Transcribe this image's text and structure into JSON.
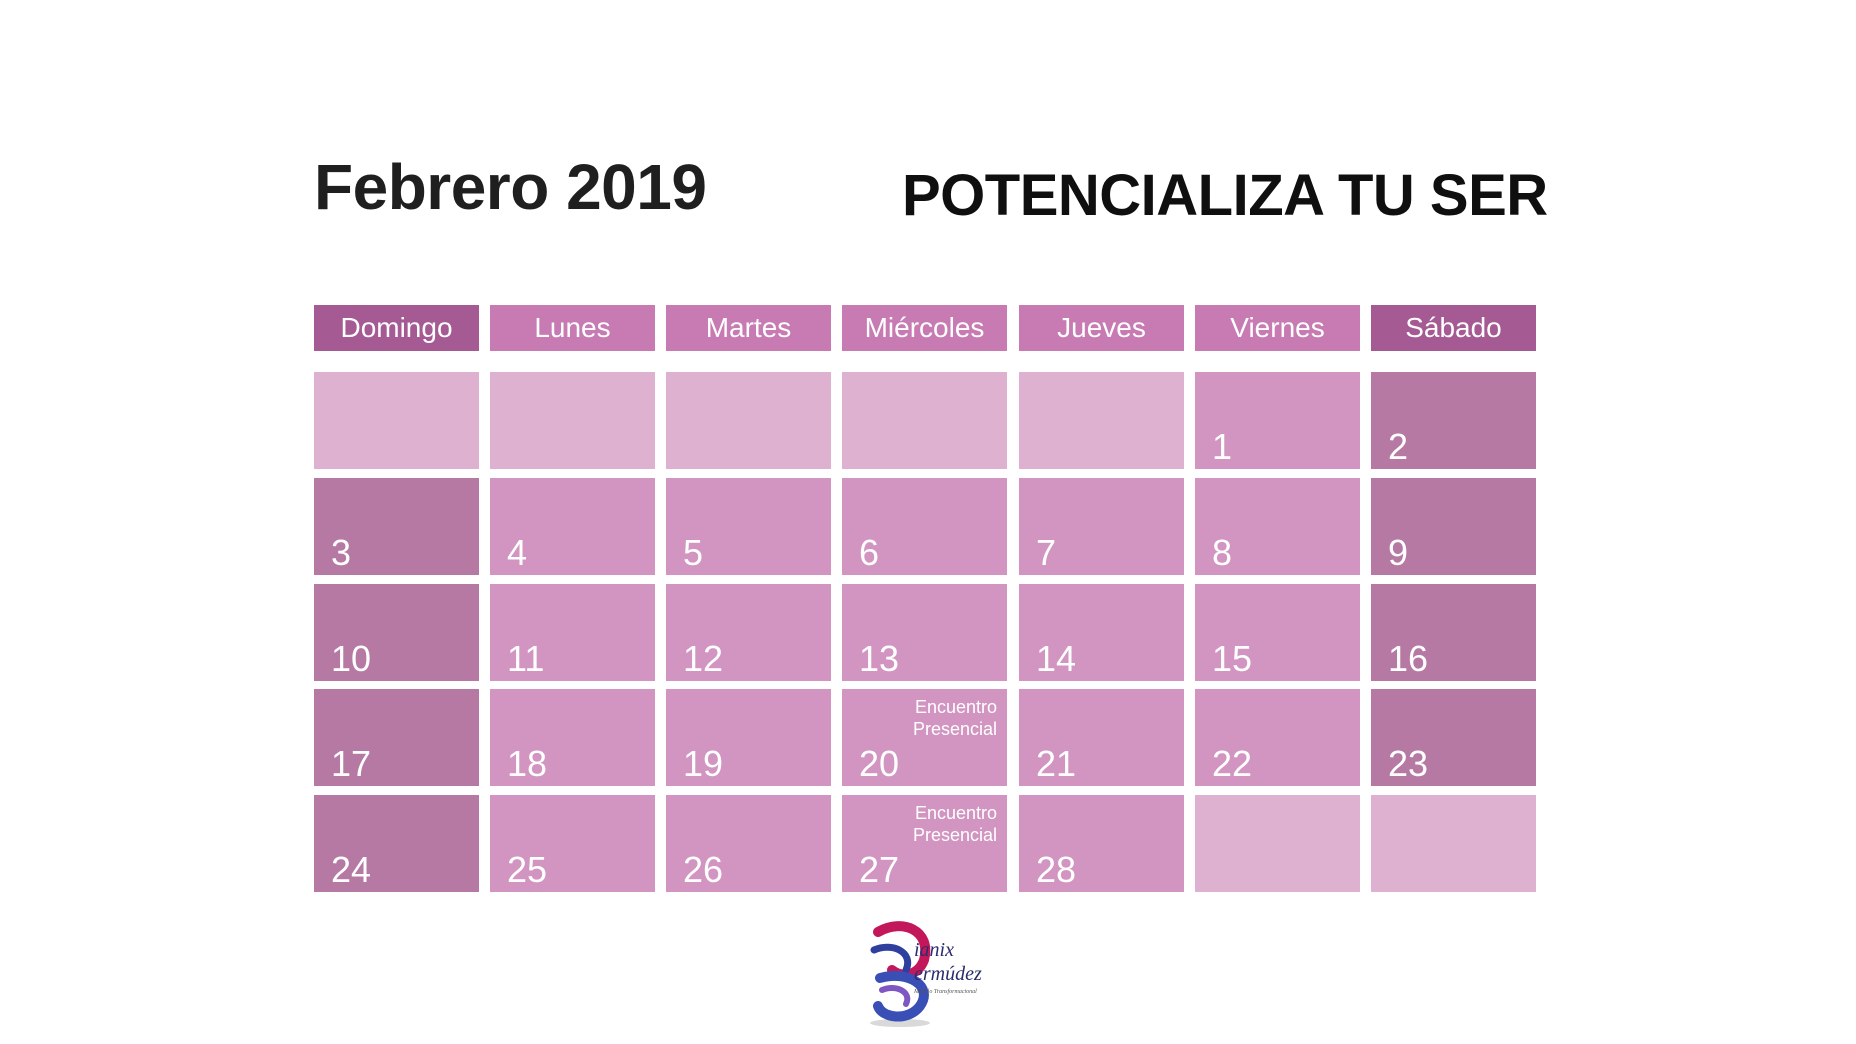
{
  "header": {
    "month_title": "Febrero 2019",
    "slogan": "POTENCIALIZA TU SER"
  },
  "weekdays": [
    "Domingo",
    "Lunes",
    "Martes",
    "Miércoles",
    "Jueves",
    "Viernes",
    "Sábado"
  ],
  "weeks": [
    [
      {
        "day": "",
        "type": "empty"
      },
      {
        "day": "",
        "type": "empty"
      },
      {
        "day": "",
        "type": "empty"
      },
      {
        "day": "",
        "type": "empty"
      },
      {
        "day": "",
        "type": "empty"
      },
      {
        "day": "1",
        "type": "weekday"
      },
      {
        "day": "2",
        "type": "weekend"
      }
    ],
    [
      {
        "day": "3",
        "type": "weekend"
      },
      {
        "day": "4",
        "type": "weekday"
      },
      {
        "day": "5",
        "type": "weekday"
      },
      {
        "day": "6",
        "type": "weekday"
      },
      {
        "day": "7",
        "type": "weekday"
      },
      {
        "day": "8",
        "type": "weekday"
      },
      {
        "day": "9",
        "type": "weekend"
      }
    ],
    [
      {
        "day": "10",
        "type": "weekend"
      },
      {
        "day": "11",
        "type": "weekday"
      },
      {
        "day": "12",
        "type": "weekday"
      },
      {
        "day": "13",
        "type": "weekday"
      },
      {
        "day": "14",
        "type": "weekday"
      },
      {
        "day": "15",
        "type": "weekday"
      },
      {
        "day": "16",
        "type": "weekend"
      }
    ],
    [
      {
        "day": "17",
        "type": "weekend"
      },
      {
        "day": "18",
        "type": "weekday"
      },
      {
        "day": "19",
        "type": "weekday"
      },
      {
        "day": "20",
        "type": "weekday",
        "event": "Encuentro\nPresencial"
      },
      {
        "day": "21",
        "type": "weekday"
      },
      {
        "day": "22",
        "type": "weekday"
      },
      {
        "day": "23",
        "type": "weekend"
      }
    ],
    [
      {
        "day": "24",
        "type": "weekend"
      },
      {
        "day": "25",
        "type": "weekday"
      },
      {
        "day": "26",
        "type": "weekday"
      },
      {
        "day": "27",
        "type": "weekday",
        "event": "Encuentro\nPresencial"
      },
      {
        "day": "28",
        "type": "weekday"
      },
      {
        "day": "",
        "type": "empty"
      },
      {
        "day": "",
        "type": "empty"
      }
    ]
  ],
  "colors": {
    "header_weekend": "#a55a93",
    "header_weekday": "#c87bb2",
    "cell_empty": "#dfb1d0",
    "cell_weekday": "#d295c1",
    "cell_weekend": "#b679a4"
  },
  "logo": {
    "brand_text_line1": "ianix",
    "brand_text_line2": "ermúdez",
    "tagline": "Modelo Transformacional"
  }
}
